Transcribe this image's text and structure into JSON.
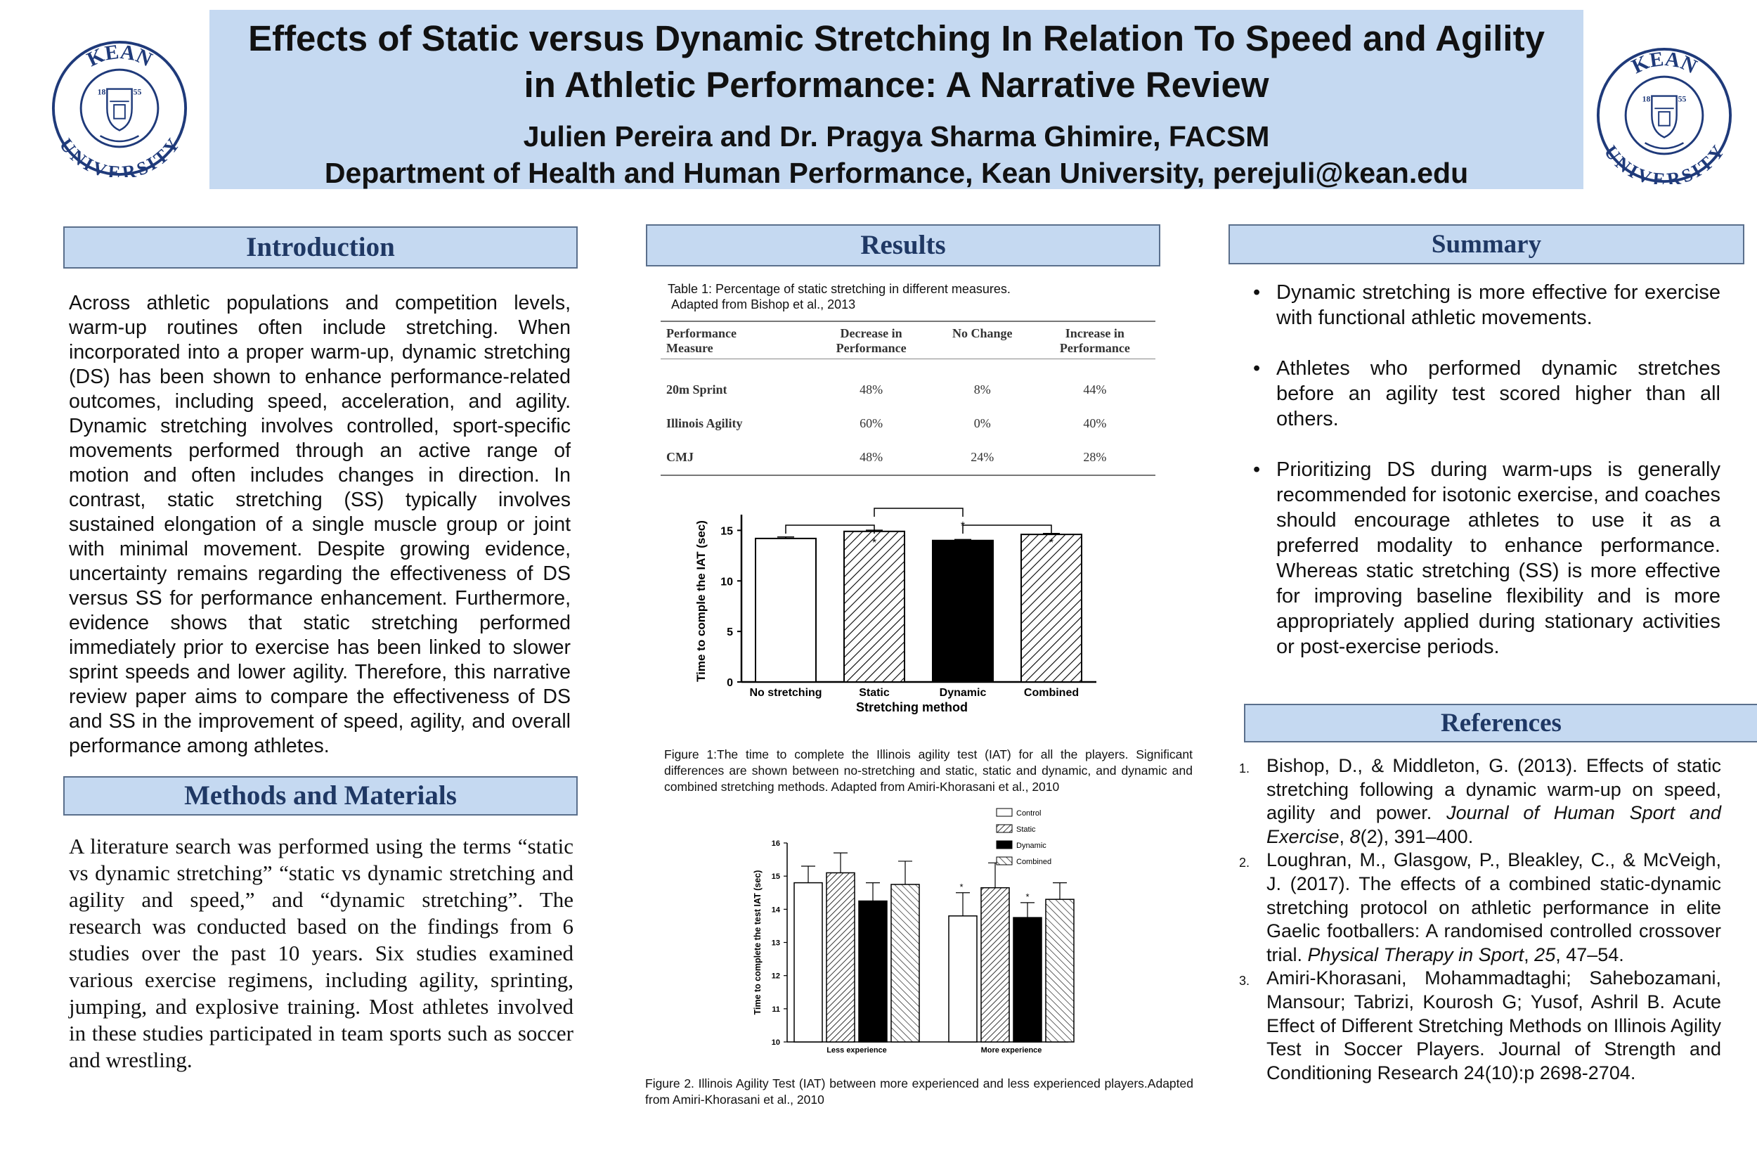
{
  "header": {
    "title_line1": "Effects of Static versus Dynamic Stretching In Relation To Speed and Agility",
    "title_line2": "in Athletic Performance: A Narrative Review",
    "authors": "Julien Pereira and Dr. Pragya Sharma Ghimire, FACSM",
    "department": "Department of  Health and Human Performance, Kean University, perejuli@kean.edu"
  },
  "logo": {
    "text_top": "KEAN",
    "text_bottom": "UNIVERSITY",
    "year_left": "18",
    "year_right": "55",
    "color": "#1f3a7a"
  },
  "colors": {
    "header_bg": "#c5d9f1",
    "section_title": "#1f3864"
  },
  "introduction": {
    "heading": "Introduction",
    "text": "Across athletic populations and competition levels, warm-up routines often include stretching. When incorporated into a proper warm-up, dynamic stretching (DS) has been shown to enhance performance-related outcomes, including speed, acceleration, and agility. Dynamic stretching involves controlled, sport-specific movements performed through an active range of motion and often includes changes in direction. In contrast, static stretching (SS) typically involves sustained elongation of a single muscle group or joint with minimal movement. Despite growing evidence, uncertainty remains regarding the effectiveness of DS versus SS for performance enhancement. Furthermore, evidence shows that static stretching performed immediately prior to exercise has been linked to slower sprint speeds and lower agility. Therefore, this narrative review paper aims to compare the effectiveness of DS and SS in the improvement of speed, agility, and overall performance among athletes."
  },
  "methods": {
    "heading": "Methods and Materials",
    "text": "A literature search was performed using the terms “static vs dynamic stretching” “static vs dynamic stretching and agility and speed,” and “dynamic stretching”.  The research was conducted based on the findings from 6 studies over the past 10 years. Six studies examined various exercise regimens, including agility, sprinting, jumping, and explosive training. Most athletes involved in these studies participated in team sports such as soccer and wrestling."
  },
  "results": {
    "heading": "Results",
    "table1_caption_line1": "Table 1: Percentage of static stretching in different measures.",
    "table1_caption_line2": "Adapted from Bishop et al., 2013",
    "table1": {
      "headers": [
        [
          "Performance",
          "Measure"
        ],
        [
          "Decrease in",
          "Performance"
        ],
        [
          "No Change",
          ""
        ],
        [
          "Increase in",
          "Performance"
        ]
      ],
      "rows": [
        [
          "20m Sprint",
          "48%",
          "8%",
          "44%"
        ],
        [
          "Illinois Agility",
          "60%",
          "0%",
          "40%"
        ],
        [
          "CMJ",
          "48%",
          "24%",
          "28%"
        ]
      ]
    },
    "figure1_caption": "Figure 1:The time to complete the Illinois agility test (IAT) for all the players. Significant differences are shown between no-stretching and static, static and dynamic, and dynamic and combined stretching methods. Adapted from Amiri-Khorasani et al., 2010",
    "figure2_caption": "Figure 2. Illinois Agility Test (IAT) between more experienced and less experienced players.Adapted from Amiri-Khorasani et al., 2010"
  },
  "chart_data": [
    {
      "type": "bar",
      "title": "",
      "xlabel": "Stretching method",
      "ylabel": "Time to comple the IAT (sec)",
      "categories": [
        "No stretching",
        "Static",
        "Dynamic",
        "Combined"
      ],
      "values": [
        14.2,
        14.9,
        14.0,
        14.6
      ],
      "errors": [
        0.15,
        0.12,
        0.1,
        0.1
      ],
      "fills": [
        "white",
        "hatch",
        "black",
        "hatch"
      ],
      "ylim": [
        0,
        16
      ],
      "yticks": [
        "0",
        "5",
        "10",
        "15"
      ],
      "significance": "*"
    },
    {
      "type": "bar",
      "title": "",
      "xlabel": "",
      "ylabel": "Time to complete the test IAT (sec)",
      "categories": [
        "Less experience",
        "More experience"
      ],
      "ylim": [
        10,
        16
      ],
      "yticks": [
        "10",
        "11",
        "12",
        "13",
        "14",
        "15",
        "16"
      ],
      "legend_position": "top-right",
      "series": [
        {
          "name": "Control",
          "values": [
            14.8,
            13.8
          ],
          "errors": [
            0.5,
            0.7
          ],
          "fill": "white"
        },
        {
          "name": "Static",
          "values": [
            15.1,
            14.65
          ],
          "errors": [
            0.6,
            0.75
          ],
          "fill": "hatch-dense"
        },
        {
          "name": "Dynamic",
          "values": [
            14.25,
            13.75
          ],
          "errors": [
            0.55,
            0.45
          ],
          "fill": "black"
        },
        {
          "name": "Combined",
          "values": [
            14.75,
            14.3
          ],
          "errors": [
            0.7,
            0.5
          ],
          "fill": "hatch"
        }
      ],
      "significance": "*"
    }
  ],
  "summary": {
    "heading": "Summary",
    "items": [
      "Dynamic stretching is more effective for exercise with functional athletic movements.",
      "Athletes who performed dynamic stretches before an agility test scored higher than all others.",
      "Prioritizing DS during warm-ups is generally recommended for isotonic exercise, and coaches should encourage athletes to use it as a preferred modality to enhance performance. Whereas static stretching (SS) is more effective for improving baseline flexibility and is more appropriately applied during stationary activities or post-exercise periods."
    ]
  },
  "references": {
    "heading": "References",
    "items": [
      {
        "num": "1.",
        "pre": "Bishop, D., & Middleton, G. (2013). Effects of static stretching following a dynamic warm-up on speed, agility and power. ",
        "italic": "Journal of Human Sport and Exercise",
        "mid": ", ",
        "italic2": "8",
        "post": "(2), 391–400."
      },
      {
        "num": "2.",
        "pre": "Loughran, M., Glasgow, P., Bleakley, C., & McVeigh, J. (2017). The effects of a combined static-dynamic stretching protocol on athletic performance in elite Gaelic footballers: A randomised controlled crossover trial. ",
        "italic": "Physical Therapy in Sport",
        "mid": ", ",
        "italic2": "25",
        "post": ", 47–54."
      },
      {
        "num": "3.",
        "pre": "Amiri-Khorasani, Mohammadtaghi; Sahebozamani, Mansour; Tabrizi, Kourosh G; Yusof, Ashril B. Acute Effect of Different Stretching Methods on Illinois Agility Test in Soccer Players. Journal of Strength and Conditioning Research 24(10):p 2698-2704.",
        "italic": "",
        "mid": "",
        "italic2": "",
        "post": ""
      }
    ]
  }
}
